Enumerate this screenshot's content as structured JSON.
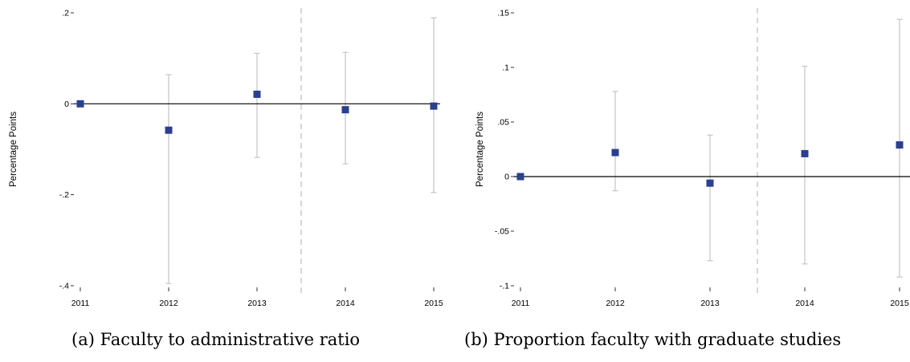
{
  "chart_data": [
    {
      "type": "scatter",
      "caption": "(a) Faculty to administrative ratio",
      "ylabel": "Percentage Points",
      "xlabel": "",
      "x": [
        2011,
        2012,
        2013,
        2014,
        2015
      ],
      "x_tick_labels": [
        "2011",
        "2012",
        "2013",
        "2014",
        "2015"
      ],
      "y_ticks": [
        0.2,
        0,
        -0.2,
        -0.4
      ],
      "y_tick_labels": [
        ".2",
        "0",
        "-.2",
        "-.4"
      ],
      "ylim": [
        -0.4,
        0.2
      ],
      "points": [
        {
          "x": 2011,
          "y": 0.0,
          "ci_low": 0.0,
          "ci_high": 0.0
        },
        {
          "x": 2012,
          "y": -0.058,
          "ci_low": -0.395,
          "ci_high": 0.064
        },
        {
          "x": 2013,
          "y": 0.021,
          "ci_low": -0.118,
          "ci_high": 0.111
        },
        {
          "x": 2014,
          "y": -0.013,
          "ci_low": -0.132,
          "ci_high": 0.113
        },
        {
          "x": 2015,
          "y": -0.005,
          "ci_low": -0.195,
          "ci_high": 0.189
        }
      ],
      "reference_line_y": 0,
      "vertical_dashed_x": 2013.5,
      "marker_color": "#2b3f8f",
      "ci_color": "#c8c8c8",
      "grid": false
    },
    {
      "type": "scatter",
      "caption": "(b) Proportion faculty with graduate studies",
      "ylabel": "Percentage Points",
      "xlabel": "",
      "x": [
        2011,
        2012,
        2013,
        2014,
        2015
      ],
      "x_tick_labels": [
        "2011",
        "2012",
        "2013",
        "2014",
        "2015"
      ],
      "y_ticks": [
        0.15,
        0.1,
        0.05,
        0,
        -0.05,
        -0.1
      ],
      "y_tick_labels": [
        ".15",
        ".1",
        ".05",
        "0",
        "-.05",
        "-.1"
      ],
      "ylim": [
        -0.1,
        0.15
      ],
      "points": [
        {
          "x": 2011,
          "y": 0.0,
          "ci_low": 0.0,
          "ci_high": 0.0
        },
        {
          "x": 2012,
          "y": 0.022,
          "ci_low": -0.013,
          "ci_high": 0.078
        },
        {
          "x": 2013,
          "y": -0.006,
          "ci_low": -0.077,
          "ci_high": 0.038
        },
        {
          "x": 2014,
          "y": 0.021,
          "ci_low": -0.08,
          "ci_high": 0.101
        },
        {
          "x": 2015,
          "y": 0.029,
          "ci_low": -0.092,
          "ci_high": 0.144
        }
      ],
      "reference_line_y": 0,
      "vertical_dashed_x": 2013.5,
      "marker_color": "#2b3f8f",
      "ci_color": "#c8c8c8",
      "grid": false
    }
  ]
}
